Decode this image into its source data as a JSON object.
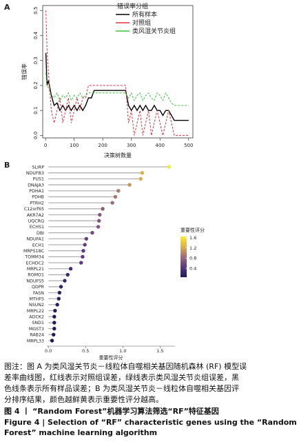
{
  "chart_data": [
    {
      "type": "line",
      "panel_label": "A",
      "x_label": "决策树数量",
      "y_label": "错误率",
      "legend_title": "错误率分组",
      "legend": "top-right",
      "x": [
        1,
        5,
        10,
        20,
        30,
        40,
        50,
        60,
        70,
        80,
        90,
        100,
        110,
        120,
        130,
        140,
        150,
        160,
        170,
        180,
        190,
        200,
        210,
        220,
        230,
        240,
        250,
        260,
        270,
        280,
        290,
        300,
        310,
        320,
        330,
        340,
        350,
        360,
        370,
        380,
        390,
        400,
        410,
        420,
        430,
        440,
        450,
        460,
        470,
        480,
        490,
        500
      ],
      "series": [
        {
          "name": "所有样本",
          "color": "#000000",
          "dash": false,
          "values": [
            0.33,
            0.2,
            0.22,
            0.16,
            0.12,
            0.13,
            0.1,
            0.12,
            0.1,
            0.12,
            0.1,
            0.12,
            0.1,
            0.12,
            0.1,
            0.12,
            0.15,
            0.15,
            0.18,
            0.18,
            0.18,
            0.18,
            0.18,
            0.18,
            0.18,
            0.18,
            0.18,
            0.18,
            0.18,
            0.18,
            0.12,
            0.1,
            0.12,
            0.1,
            0.12,
            0.1,
            0.12,
            0.1,
            0.1,
            0.12,
            0.1,
            0.1,
            0.08,
            0.1,
            0.1,
            0.08,
            0.06,
            0.06,
            0.06,
            0.06,
            0.06,
            0.06
          ]
        },
        {
          "name": "对照组",
          "color": "#e0303a",
          "dash": true,
          "values": [
            0.5,
            0.35,
            0.25,
            0.1,
            0.05,
            0.1,
            0.15,
            0.05,
            0.1,
            0.15,
            0.05,
            0.1,
            0.15,
            0.1,
            0.15,
            0.15,
            0.2,
            0.2,
            0.2,
            0.2,
            0.2,
            0.2,
            0.2,
            0.2,
            0.2,
            0.2,
            0.2,
            0.2,
            0.2,
            0.2,
            0.05,
            0.1,
            0,
            0.05,
            0.1,
            0,
            0.05,
            0.1,
            0,
            0.05,
            0.1,
            0.05,
            0,
            0.05,
            0.1,
            0.05,
            0,
            0,
            0,
            0,
            0,
            0
          ]
        },
        {
          "name": "类风湿关节炎组",
          "color": "#3fbf3f",
          "dash": true,
          "values": [
            0.25,
            0.2,
            0.19,
            0.16,
            0.15,
            0.17,
            0.14,
            0.16,
            0.15,
            0.17,
            0.14,
            0.16,
            0.15,
            0.17,
            0.15,
            0.16,
            0.17,
            0.17,
            0.17,
            0.17,
            0.17,
            0.17,
            0.17,
            0.17,
            0.17,
            0.17,
            0.17,
            0.17,
            0.17,
            0.17,
            0.15,
            0.17,
            0.14,
            0.16,
            0.17,
            0.14,
            0.16,
            0.17,
            0.15,
            0.14,
            0.17,
            0.16,
            0.14,
            0.17,
            0.15,
            0.13,
            0.12,
            0.12,
            0.12,
            0.12,
            0.12,
            0.12
          ]
        }
      ],
      "xlim": [
        -10,
        515
      ],
      "xticks": [
        0,
        100,
        200,
        300,
        400,
        500
      ],
      "ylim": [
        -0.01,
        0.52
      ],
      "yticks": [
        {
          "value": 0,
          "label": "0.0"
        },
        0.1,
        0.2,
        0.3,
        0.4,
        0.5
      ]
    },
    {
      "type": "lollipop",
      "panel_label": "B",
      "x_label": "重要性评分",
      "colorbar_title": "重要性评分",
      "categories": [
        "SLIRP",
        "NDUFB3",
        "PUS1",
        "DNAJA3",
        "PDHA1",
        "PDHB",
        "PTRH2",
        "C12orf65",
        "AKR7A2",
        "UQCRQ",
        "ECHS1",
        "DBI",
        "NDUFA1",
        "ECH1",
        "MRPS18C",
        "TOMM34",
        "ECHDC2",
        "MRPL21",
        "ROMO1",
        "NDUFS5",
        "QDPR",
        "FASN",
        "MTHFS",
        "NSUN2",
        "MRPL22",
        "ADCK2",
        "SND1",
        "MGST3",
        "RAB24",
        "MRPL33"
      ],
      "values": [
        1.62,
        1.26,
        1.24,
        1.09,
        0.94,
        0.9,
        0.86,
        0.73,
        0.69,
        0.68,
        0.67,
        0.59,
        0.51,
        0.49,
        0.47,
        0.46,
        0.44,
        0.3,
        0.26,
        0.22,
        0.17,
        0.15,
        0.14,
        0.12,
        0.09,
        0.08,
        0.08,
        0.08,
        0.07,
        0.05
      ],
      "stem_color": "#b0b0b0",
      "colormap": [
        "#1e1a5a",
        "#5a3a80",
        "#a06a7a",
        "#d9b24a",
        "#f6ec3a"
      ],
      "clim": [
        0.05,
        1.65
      ],
      "cticks": [
        0.4,
        0.8,
        1.2,
        1.6
      ],
      "xlim": [
        -0.02,
        1.7
      ],
      "xticks": [
        {
          "value": 0,
          "label": "0.0"
        },
        0.5,
        {
          "value": 1,
          "label": "1.0"
        },
        1.5
      ]
    }
  ],
  "caption": {
    "note_lines": [
      "图注：图 A 为类风湿关节炎－线粒体自噬相关基因随机森林 (RF) 模型误",
      "差率曲线图，红线表示对照组误差，绿线表示类风湿关节炎组误差，黑",
      "色线条表示所有样品误差；B 为类风湿关节炎－线粒体自噬相关基因评",
      "分排序结果，颜色越鲜黄表示重要性评分越高。"
    ],
    "title_cn": "图 4 丨 “Random Forest”机器学习算法筛选“RF”特征基因",
    "title_en_lines": [
      "Figure 4 | Selection of “RF” characteristic genes using the “Random",
      "Forest” machine learning algorithm"
    ]
  }
}
